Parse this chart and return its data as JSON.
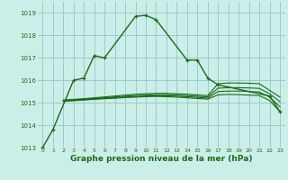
{
  "background_color": "#cceee8",
  "grid_color": "#99cccc",
  "line_color": "#1a6b1a",
  "xlabel": "Graphe pression niveau de la mer (hPa)",
  "ylim": [
    1013.0,
    1019.5
  ],
  "xlim": [
    -0.5,
    23.5
  ],
  "yticks": [
    1013,
    1014,
    1015,
    1016,
    1017,
    1018,
    1019
  ],
  "xticks": [
    0,
    1,
    2,
    3,
    4,
    5,
    6,
    7,
    8,
    9,
    10,
    11,
    12,
    13,
    14,
    15,
    16,
    17,
    18,
    19,
    20,
    21,
    22,
    23
  ],
  "main_line": {
    "x": [
      0,
      1,
      3,
      4,
      5,
      6,
      9,
      10,
      11,
      14,
      15,
      16,
      17,
      22,
      23
    ],
    "y": [
      1013.0,
      1013.8,
      1016.0,
      1016.1,
      1017.1,
      1017.0,
      1018.85,
      1018.9,
      1018.7,
      1016.9,
      1016.9,
      1016.1,
      1015.8,
      1015.3,
      1014.6
    ]
  },
  "flat_lines": [
    {
      "x": [
        2,
        3,
        4,
        5,
        6,
        7,
        8,
        9,
        10,
        11,
        12,
        13,
        14,
        15,
        16,
        17,
        18,
        19,
        20,
        21,
        22,
        23
      ],
      "y": [
        1015.12,
        1015.15,
        1015.18,
        1015.22,
        1015.26,
        1015.3,
        1015.34,
        1015.38,
        1015.4,
        1015.42,
        1015.42,
        1015.4,
        1015.38,
        1015.35,
        1015.32,
        1015.85,
        1015.88,
        1015.88,
        1015.87,
        1015.85,
        1015.55,
        1015.25
      ]
    },
    {
      "x": [
        2,
        3,
        4,
        5,
        6,
        7,
        8,
        9,
        10,
        11,
        12,
        13,
        14,
        15,
        16,
        17,
        18,
        19,
        20,
        21,
        22,
        23
      ],
      "y": [
        1015.1,
        1015.13,
        1015.16,
        1015.19,
        1015.22,
        1015.26,
        1015.29,
        1015.32,
        1015.34,
        1015.36,
        1015.36,
        1015.34,
        1015.32,
        1015.29,
        1015.26,
        1015.65,
        1015.67,
        1015.67,
        1015.66,
        1015.64,
        1015.4,
        1015.05
      ]
    },
    {
      "x": [
        2,
        3,
        4,
        5,
        6,
        7,
        8,
        9,
        10,
        11,
        12,
        13,
        14,
        15,
        16,
        17,
        18,
        19,
        20,
        21,
        22,
        23
      ],
      "y": [
        1015.08,
        1015.11,
        1015.14,
        1015.17,
        1015.2,
        1015.23,
        1015.26,
        1015.28,
        1015.3,
        1015.31,
        1015.31,
        1015.29,
        1015.27,
        1015.24,
        1015.21,
        1015.5,
        1015.52,
        1015.52,
        1015.5,
        1015.48,
        1015.25,
        1014.82
      ]
    },
    {
      "x": [
        2,
        3,
        4,
        5,
        6,
        7,
        8,
        9,
        10,
        11,
        12,
        13,
        14,
        15,
        16,
        17,
        18,
        19,
        20,
        21,
        22,
        23
      ],
      "y": [
        1015.06,
        1015.09,
        1015.12,
        1015.15,
        1015.18,
        1015.2,
        1015.23,
        1015.25,
        1015.27,
        1015.28,
        1015.27,
        1015.25,
        1015.22,
        1015.19,
        1015.16,
        1015.35,
        1015.37,
        1015.36,
        1015.34,
        1015.32,
        1015.1,
        1014.6
      ]
    }
  ]
}
